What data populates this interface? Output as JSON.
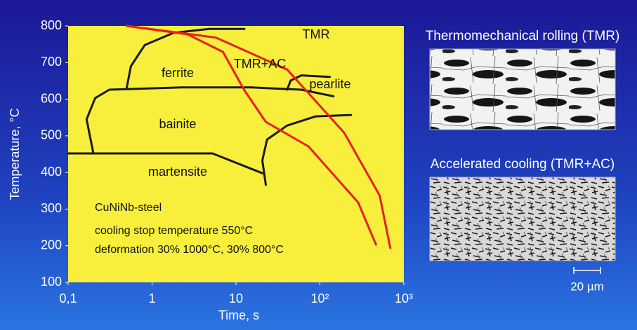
{
  "chart_data": {
    "type": "line",
    "x_label": "Time, s",
    "y_label": "Temperature, °C",
    "log_x": true,
    "xlim": [
      0.1,
      1000
    ],
    "xticks": [
      {
        "value": 0.1,
        "label": "0,1"
      },
      1,
      10,
      {
        "value": 100,
        "label": "10²"
      },
      {
        "value": 1000,
        "label": "10³"
      }
    ],
    "ylim": [
      100,
      800
    ],
    "yticks": [
      100,
      200,
      300,
      400,
      500,
      600,
      700,
      800
    ],
    "background": "#f7ef3c",
    "series": [
      {
        "color": "#1a1a1a",
        "x": [
          0.5,
          0.56,
          0.82,
          1.8,
          4.8,
          12.6
        ],
        "values": [
          632,
          690,
          748,
          781,
          792,
          792
        ]
      },
      {
        "color": "#1a1a1a",
        "x": [
          0.2,
          0.166,
          0.21,
          0.31,
          2.2,
          15.3,
          60,
          145
        ],
        "values": [
          452,
          545,
          603,
          626,
          632,
          632,
          626,
          608
        ]
      },
      {
        "color": "#1a1a1a",
        "x": [
          40.7,
          44.9,
          60,
          131
        ],
        "values": [
          626,
          651,
          665,
          661
        ]
      },
      {
        "color": "#1a1a1a",
        "x": [
          22.7,
          20.6,
          23.5,
          40.7,
          89,
          235
        ],
        "values": [
          366,
          433,
          490,
          528,
          553,
          557
        ]
      },
      {
        "color": "#1a1a1a",
        "x": [
          0.1,
          5.25,
          20.6
        ],
        "values": [
          452,
          452,
          398
        ]
      },
      {
        "name": "TMR",
        "color": "#e8201e",
        "x": [
          0.5,
          5.8,
          40.7,
          194,
          515,
          690
        ],
        "values": [
          800,
          768,
          681,
          509,
          337,
          194
        ]
      },
      {
        "name": "TMR+AC",
        "color": "#e8201e",
        "x": [
          0.5,
          2.65,
          7.0,
          12.6,
          22.7,
          73,
          286,
          465
        ],
        "values": [
          800,
          777,
          729,
          624,
          538,
          471,
          318,
          203
        ]
      }
    ],
    "annotations": [
      "ferrite",
      "pearlite",
      "bainite",
      "martensite",
      "CuNiNb-steel",
      "cooling stop temperature  550°C",
      "deformation  30% 1000°C, 30% 800°C"
    ]
  },
  "panels": [
    {
      "title": "Thermomechanical rolling (TMR)"
    },
    {
      "title": "Accelerated cooling (TMR+AC)"
    }
  ],
  "scale_bar": "20 µm"
}
